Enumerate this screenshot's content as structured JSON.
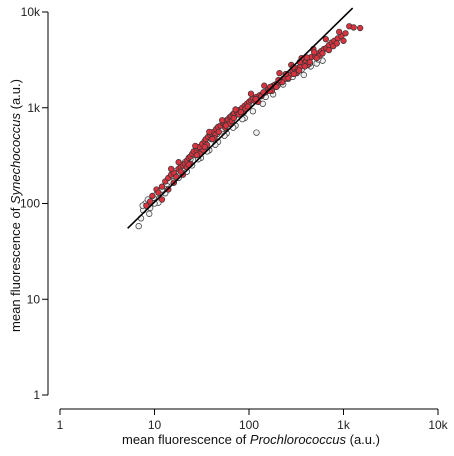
{
  "chart_data": {
    "type": "scatter",
    "title": "",
    "xlabel": {
      "prefix": "mean fluorescence of ",
      "italic": "Prochlorococcus",
      "suffix": " (a.u.)"
    },
    "ylabel": {
      "prefix": "mean fluorescence of ",
      "italic": "Synechococcus",
      "suffix": " (a.u.)"
    },
    "xscale": "log",
    "yscale": "log",
    "xlim": [
      1,
      10000
    ],
    "ylim": [
      1,
      10000
    ],
    "xticks": [
      1,
      10,
      100,
      1000,
      10000
    ],
    "xtick_labels": [
      "1",
      "10",
      "100",
      "1k",
      "10k"
    ],
    "yticks": [
      1,
      10,
      100,
      1000,
      10000
    ],
    "ytick_labels": [
      "1",
      "10",
      "100",
      "1k",
      "10k"
    ],
    "grid": false,
    "legend": "none",
    "colors": {
      "red_fill": "#d9333f",
      "white_fill": "#f2f2f2",
      "marker_stroke": "#333333",
      "line": "#000000"
    },
    "fit_line": {
      "x": [
        5.2,
        1250
      ],
      "y": [
        55,
        11000
      ]
    },
    "series": [
      {
        "marker": "red",
        "points": [
          [
            8.2,
            95
          ],
          [
            9.0,
            105
          ],
          [
            9.5,
            120
          ],
          [
            10.5,
            140
          ],
          [
            11,
            130
          ],
          [
            12,
            150
          ],
          [
            13,
            170
          ],
          [
            14,
            185
          ],
          [
            15,
            200
          ],
          [
            16,
            210
          ],
          [
            17,
            190
          ],
          [
            18,
            230
          ],
          [
            19,
            240
          ],
          [
            20,
            250
          ],
          [
            21,
            260
          ],
          [
            22,
            280
          ],
          [
            23,
            300
          ],
          [
            24,
            310
          ],
          [
            25,
            330
          ],
          [
            26,
            350
          ],
          [
            28,
            360
          ],
          [
            29,
            380
          ],
          [
            30,
            390
          ],
          [
            32,
            420
          ],
          [
            34,
            450
          ],
          [
            35,
            470
          ],
          [
            37,
            500
          ],
          [
            39,
            520
          ],
          [
            40,
            540
          ],
          [
            42,
            560
          ],
          [
            45,
            600
          ],
          [
            47,
            630
          ],
          [
            50,
            650
          ],
          [
            53,
            690
          ],
          [
            55,
            700
          ],
          [
            58,
            740
          ],
          [
            60,
            760
          ],
          [
            63,
            800
          ],
          [
            65,
            820
          ],
          [
            68,
            860
          ],
          [
            70,
            880
          ],
          [
            75,
            900
          ],
          [
            80,
            950
          ],
          [
            85,
            1000
          ],
          [
            90,
            1050
          ],
          [
            95,
            1100
          ],
          [
            100,
            1150
          ],
          [
            105,
            1200
          ],
          [
            110,
            1250
          ],
          [
            120,
            1300
          ],
          [
            130,
            1350
          ],
          [
            140,
            1400
          ],
          [
            150,
            1450
          ],
          [
            160,
            1550
          ],
          [
            170,
            1600
          ],
          [
            180,
            1700
          ],
          [
            190,
            1750
          ],
          [
            200,
            1800
          ],
          [
            215,
            1900
          ],
          [
            230,
            2000
          ],
          [
            250,
            2100
          ],
          [
            270,
            2200
          ],
          [
            290,
            2400
          ],
          [
            310,
            2500
          ],
          [
            330,
            2600
          ],
          [
            350,
            2700
          ],
          [
            380,
            2900
          ],
          [
            400,
            3100
          ],
          [
            430,
            3200
          ],
          [
            460,
            3400
          ],
          [
            500,
            3500
          ],
          [
            540,
            3700
          ],
          [
            580,
            3900
          ],
          [
            620,
            4100
          ],
          [
            660,
            4200
          ],
          [
            700,
            4500
          ],
          [
            750,
            4800
          ],
          [
            800,
            5000
          ],
          [
            870,
            5300
          ],
          [
            950,
            5600
          ],
          [
            1050,
            6000
          ],
          [
            1150,
            7100
          ],
          [
            1280,
            6900
          ],
          [
            1500,
            6800
          ],
          [
            15,
            230
          ],
          [
            18,
            270
          ],
          [
            22,
            240
          ],
          [
            27,
            400
          ],
          [
            33,
            360
          ],
          [
            38,
            560
          ],
          [
            44,
            520
          ],
          [
            52,
            740
          ],
          [
            62,
            680
          ],
          [
            72,
            960
          ],
          [
            88,
            900
          ],
          [
            105,
            1400
          ],
          [
            125,
            1150
          ],
          [
            145,
            1700
          ],
          [
            175,
            1500
          ],
          [
            210,
            2300
          ],
          [
            240,
            2000
          ],
          [
            280,
            2800
          ],
          [
            320,
            2300
          ],
          [
            360,
            3300
          ],
          [
            420,
            2800
          ],
          [
            480,
            4100
          ],
          [
            560,
            3500
          ],
          [
            650,
            5200
          ],
          [
            780,
            4400
          ],
          [
            900,
            6200
          ],
          [
            1000,
            5000
          ],
          [
            12,
            110
          ],
          [
            16,
            165
          ],
          [
            20,
            200
          ],
          [
            24,
            260
          ],
          [
            30,
            330
          ],
          [
            36,
            410
          ],
          [
            43,
            480
          ],
          [
            56,
            620
          ],
          [
            66,
            730
          ],
          [
            78,
            850
          ],
          [
            92,
            980
          ],
          [
            115,
            1180
          ],
          [
            135,
            1320
          ],
          [
            165,
            1500
          ],
          [
            195,
            1650
          ],
          [
            225,
            1850
          ],
          [
            260,
            2050
          ],
          [
            300,
            2250
          ],
          [
            340,
            2450
          ],
          [
            390,
            2700
          ],
          [
            440,
            3000
          ],
          [
            520,
            3300
          ],
          [
            600,
            3700
          ],
          [
            700,
            4000
          ],
          [
            850,
            4700
          ],
          [
            14,
            140
          ],
          [
            19,
            215
          ],
          [
            23,
            255
          ],
          [
            28,
            320
          ],
          [
            34,
            390
          ],
          [
            41,
            470
          ],
          [
            48,
            560
          ],
          [
            57,
            650
          ],
          [
            69,
            780
          ],
          [
            82,
            900
          ],
          [
            97,
            1030
          ],
          [
            118,
            1230
          ],
          [
            142,
            1450
          ],
          [
            168,
            1650
          ],
          [
            205,
            1950
          ],
          [
            245,
            2250
          ],
          [
            295,
            2650
          ],
          [
            345,
            3000
          ],
          [
            410,
            3350
          ],
          [
            490,
            3800
          ]
        ]
      },
      {
        "marker": "white",
        "points": [
          [
            6.8,
            58
          ],
          [
            7.2,
            70
          ],
          [
            7.6,
            85
          ],
          [
            8.0,
            100
          ],
          [
            8.5,
            110
          ],
          [
            9.0,
            90
          ],
          [
            9.8,
            115
          ],
          [
            10.5,
            125
          ],
          [
            11.5,
            130
          ],
          [
            12.5,
            150
          ],
          [
            13.5,
            160
          ],
          [
            14.5,
            170
          ],
          [
            15.5,
            195
          ],
          [
            17,
            220
          ],
          [
            19,
            245
          ],
          [
            21,
            270
          ],
          [
            24,
            290
          ],
          [
            27,
            320
          ],
          [
            30,
            370
          ],
          [
            35,
            420
          ],
          [
            40,
            470
          ],
          [
            46,
            530
          ],
          [
            52,
            600
          ],
          [
            60,
            700
          ],
          [
            70,
            810
          ],
          [
            85,
            930
          ],
          [
            100,
            1080
          ],
          [
            120,
            550
          ],
          [
            150,
            1300
          ],
          [
            200,
            1700
          ],
          [
            260,
            2000
          ],
          [
            320,
            2400
          ],
          [
            380,
            2200
          ],
          [
            450,
            2700
          ],
          [
            520,
            2900
          ],
          [
            600,
            3100
          ],
          [
            8.8,
            78
          ],
          [
            11,
            102
          ],
          [
            13,
            128
          ],
          [
            16,
            165
          ],
          [
            20,
            205
          ],
          [
            25,
            250
          ],
          [
            31,
            300
          ],
          [
            38,
            360
          ],
          [
            47,
            440
          ],
          [
            58,
            540
          ],
          [
            72,
            650
          ],
          [
            90,
            780
          ],
          [
            110,
            920
          ],
          [
            140,
            1100
          ],
          [
            180,
            1380
          ],
          [
            230,
            1750
          ],
          [
            290,
            2100
          ],
          [
            360,
            2500
          ],
          [
            440,
            2900
          ],
          [
            540,
            3200
          ],
          [
            7.5,
            95
          ],
          [
            10,
            100
          ],
          [
            12,
            140
          ],
          [
            18,
            185
          ],
          [
            22,
            215
          ],
          [
            29,
            290
          ],
          [
            36,
            350
          ],
          [
            44,
            410
          ],
          [
            55,
            510
          ],
          [
            68,
            620
          ],
          [
            85,
            760
          ]
        ]
      }
    ]
  }
}
